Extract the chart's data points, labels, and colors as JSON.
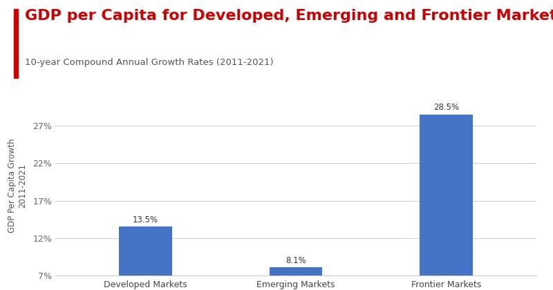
{
  "title": "GDP per Capita for Developed, Emerging and Frontier Markets",
  "subtitle": "10-year Compound Annual Growth Rates (2011-2021)",
  "categories": [
    "Developed Markets",
    "Emerging Markets",
    "Frontier Markets"
  ],
  "values": [
    13.5,
    8.1,
    28.5
  ],
  "bar_color": "#4472C4",
  "title_color": "#CC0000",
  "subtitle_color": "#555555",
  "ylabel": "GDP Per Capita Growth\n2011-2021",
  "ylabel_color": "#555555",
  "yticks": [
    7,
    12,
    17,
    22,
    27
  ],
  "ytick_labels": [
    "7%",
    "12%",
    "17%",
    "22%",
    "27%"
  ],
  "ylim_min": 7,
  "ylim_max": 31,
  "bar_label_color": "#333333",
  "background_color": "#FFFFFF",
  "left_accent_color": "#CC0000",
  "title_fontsize": 16,
  "subtitle_fontsize": 9.5,
  "ylabel_fontsize": 8.5,
  "bar_label_fontsize": 8.5,
  "tick_label_fontsize": 9,
  "bar_width": 0.35
}
